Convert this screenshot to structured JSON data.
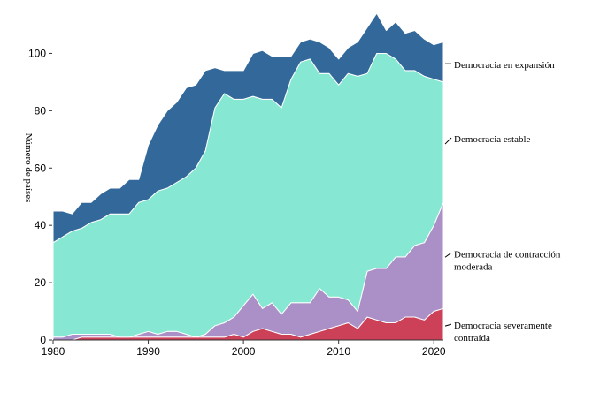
{
  "chart_data": {
    "type": "area",
    "title": "",
    "xlabel": "",
    "ylabel": "Número de países",
    "xlim": [
      1980,
      2021
    ],
    "ylim": [
      0,
      110
    ],
    "x_ticks": [
      "1980",
      "1990",
      "2000",
      "2010",
      "2020"
    ],
    "y_ticks": [
      "0",
      "20",
      "40",
      "60",
      "80",
      "100"
    ],
    "x": [
      1980,
      1981,
      1982,
      1983,
      1984,
      1985,
      1986,
      1987,
      1988,
      1989,
      1990,
      1991,
      1992,
      1993,
      1994,
      1995,
      1996,
      1997,
      1998,
      1999,
      2000,
      2001,
      2002,
      2003,
      2004,
      2005,
      2006,
      2007,
      2008,
      2009,
      2010,
      2011,
      2012,
      2013,
      2014,
      2015,
      2016,
      2017,
      2018,
      2019,
      2020,
      2021
    ],
    "series": [
      {
        "name": "Democracia severamente contraída",
        "label_lines": [
          "Democracia severamente",
          "contraída"
        ],
        "color": "#cc4058",
        "values": [
          0,
          0,
          0,
          1,
          1,
          1,
          1,
          1,
          1,
          1,
          1,
          1,
          1,
          1,
          1,
          1,
          1,
          1,
          1,
          2,
          1,
          3,
          4,
          3,
          2,
          2,
          1,
          2,
          3,
          4,
          5,
          6,
          4,
          8,
          7,
          6,
          6,
          8,
          8,
          7,
          10,
          11
        ]
      },
      {
        "name": "Democracia de contracción moderada",
        "label_lines": [
          "Democracia de contracción",
          "moderada"
        ],
        "color": "#ab8fc7",
        "values": [
          1,
          1,
          2,
          1,
          1,
          1,
          1,
          0,
          0,
          1,
          2,
          1,
          2,
          2,
          1,
          0,
          1,
          4,
          5,
          6,
          11,
          13,
          7,
          10,
          7,
          11,
          12,
          11,
          15,
          11,
          10,
          8,
          6,
          16,
          18,
          19,
          23,
          21,
          25,
          27,
          30,
          37
        ]
      },
      {
        "name": "Democracia estable",
        "label_lines": [
          "Democracia estable"
        ],
        "color": "#86e8d2",
        "values": [
          33,
          35,
          36,
          37,
          39,
          40,
          42,
          43,
          43,
          46,
          46,
          50,
          50,
          52,
          55,
          59,
          64,
          76,
          80,
          76,
          72,
          69,
          73,
          71,
          72,
          78,
          84,
          85,
          75,
          78,
          74,
          79,
          82,
          69,
          75,
          75,
          69,
          65,
          61,
          58,
          51,
          42
        ]
      },
      {
        "name": "Democracia en expansión",
        "label_lines": [
          "Democracia en expansión"
        ],
        "color": "#33699a",
        "values": [
          11,
          9,
          6,
          9,
          7,
          9,
          9,
          9,
          12,
          8,
          19,
          23,
          27,
          28,
          31,
          29,
          28,
          14,
          8,
          10,
          10,
          15,
          17,
          15,
          18,
          8,
          7,
          7,
          11,
          9,
          9,
          9,
          12,
          16,
          14,
          8,
          13,
          13,
          14,
          13,
          12,
          14
        ]
      }
    ]
  }
}
